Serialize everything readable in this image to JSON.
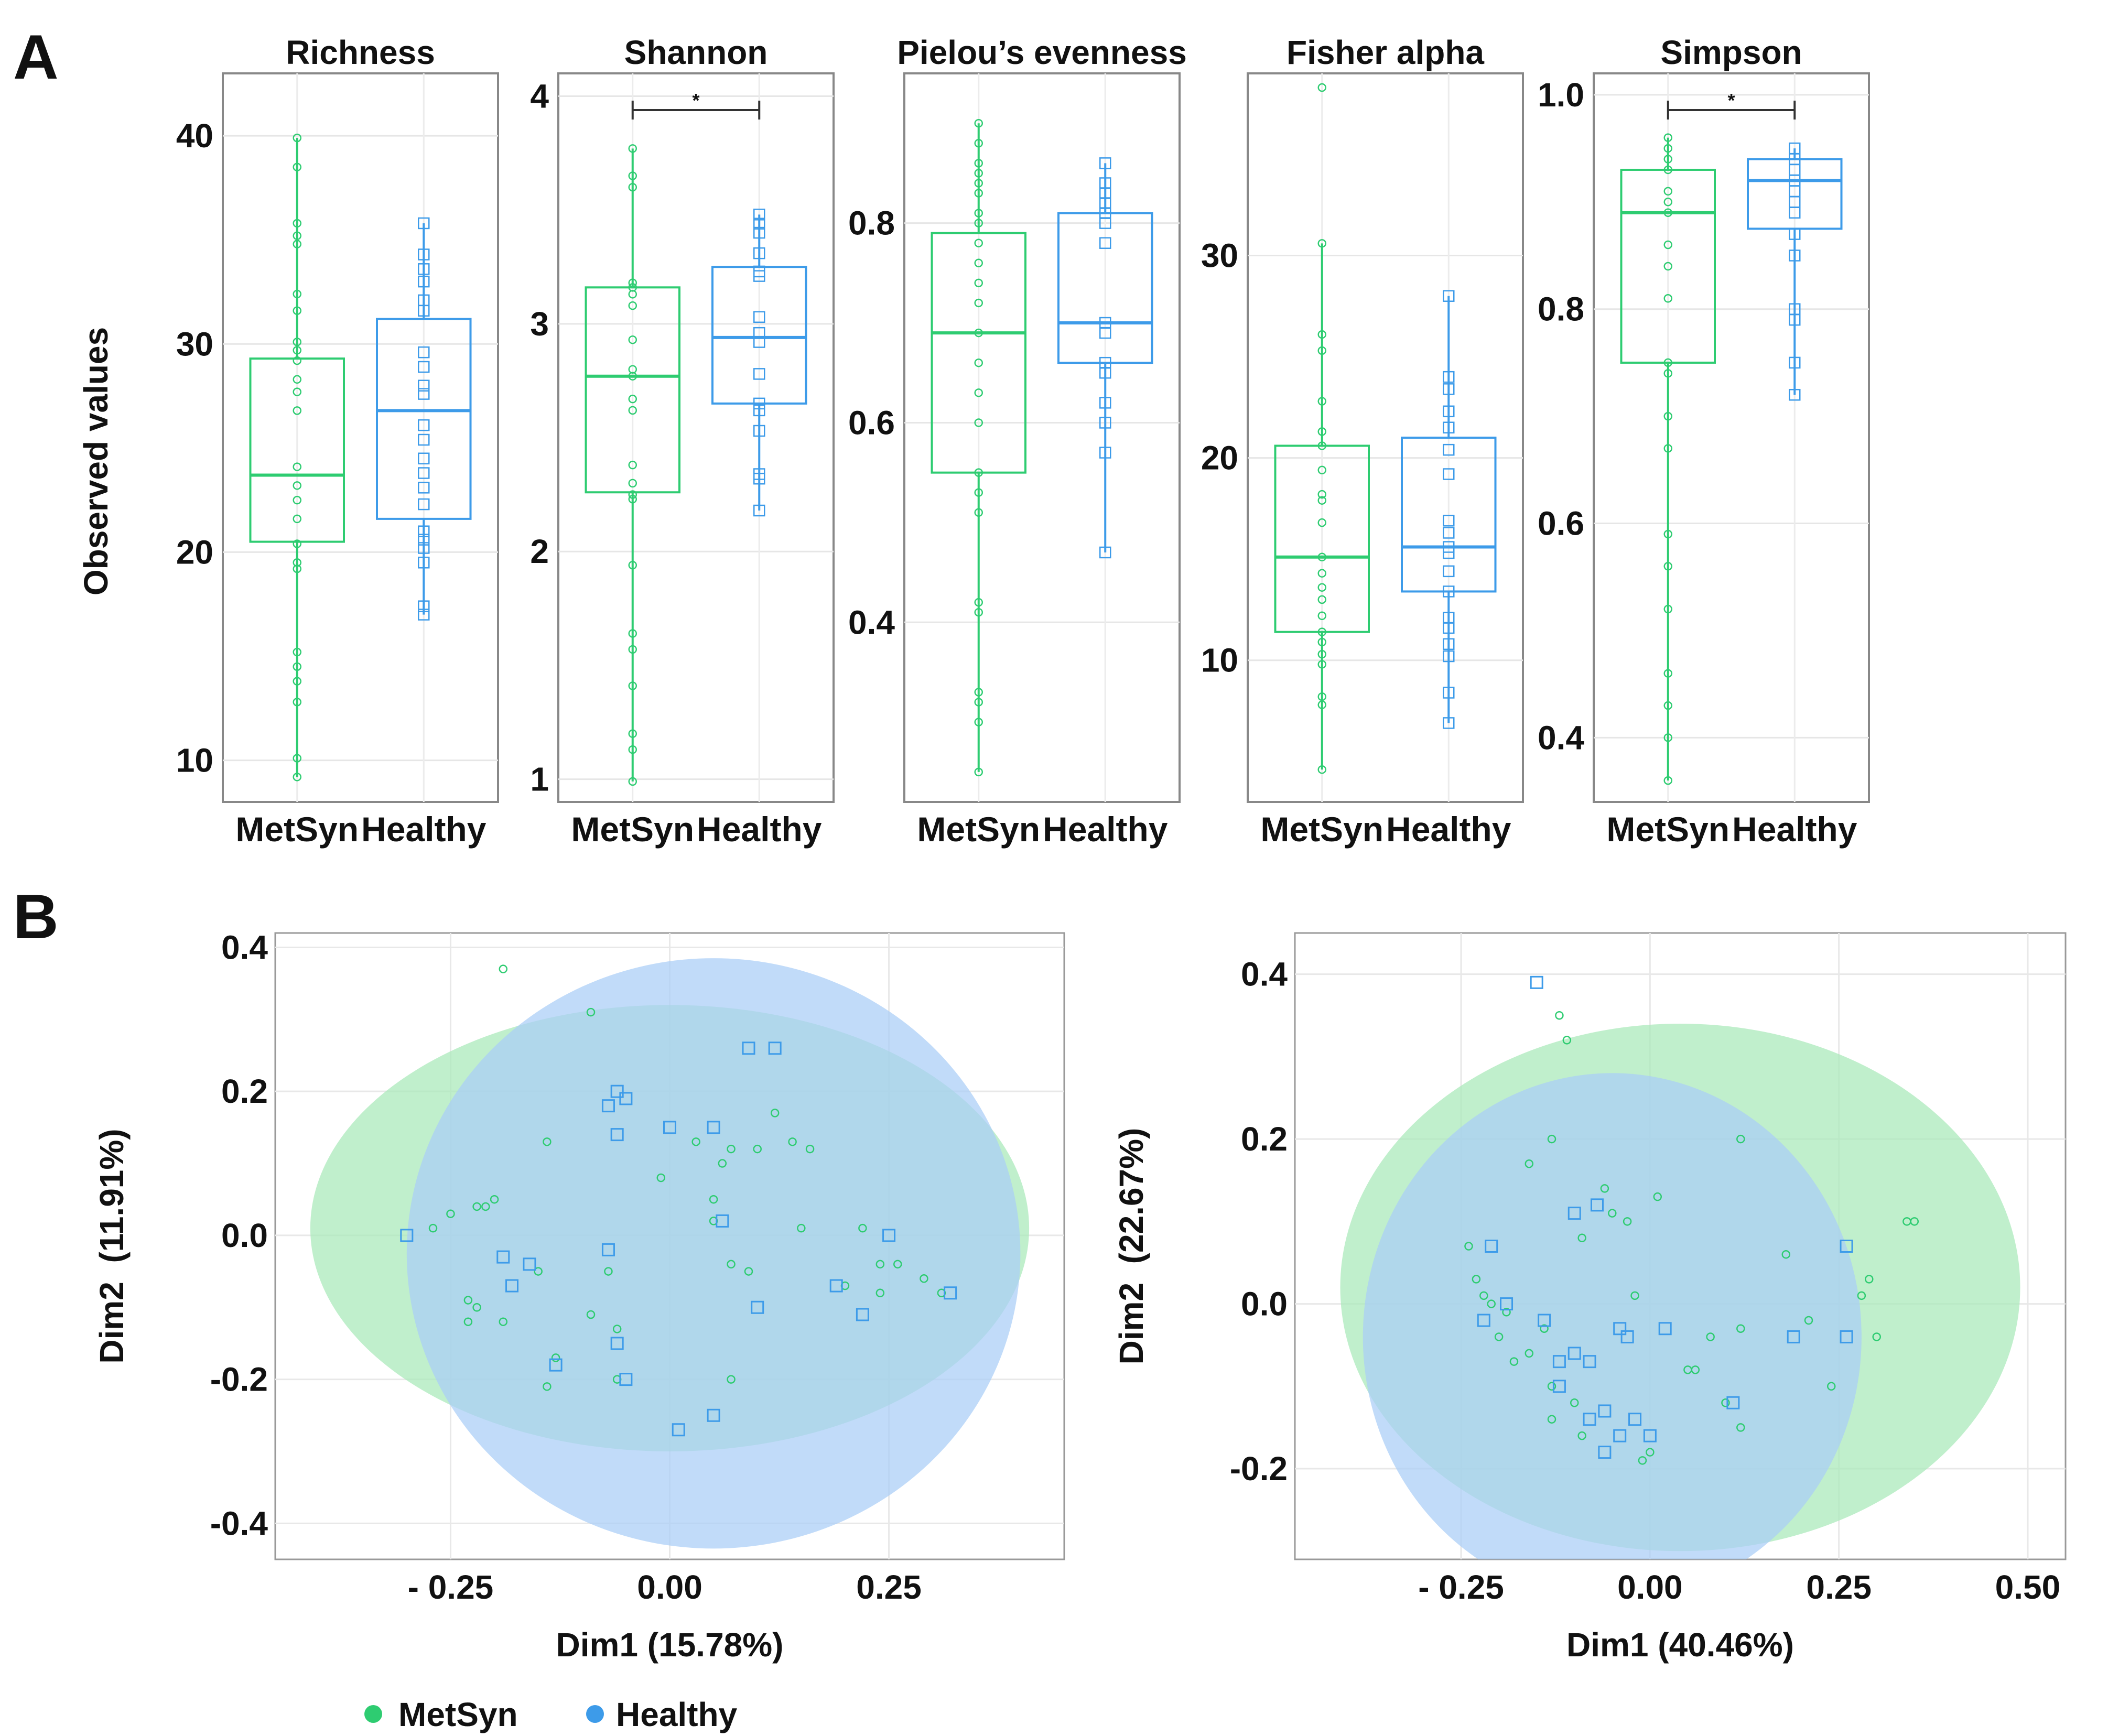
{
  "figure": {
    "panel_a_tag": "A",
    "panel_b_tag": "B",
    "ylabel_a": "Observed values",
    "legend": [
      {
        "name": "MetSyn",
        "color": "#2ecc71"
      },
      {
        "name": "Healthy",
        "color": "#3d9be9"
      }
    ]
  },
  "colors": {
    "metsyn": "#2ecc71",
    "healthy": "#3d9be9",
    "metsyn_fill": "#a7e9b9",
    "healthy_fill": "#a9cdf6",
    "overlap": "#8fd3d7"
  },
  "chart_data": [
    {
      "type": "box",
      "title": "Richness",
      "categories": [
        "MetSyn",
        "Healthy"
      ],
      "ylim": [
        8,
        43
      ],
      "yticks": [
        "10",
        "20",
        "30",
        "40"
      ],
      "ytick_values": [
        10,
        20,
        30,
        40
      ],
      "significance": null,
      "series": [
        {
          "name": "MetSyn",
          "q1": 20.5,
          "median": 23.7,
          "q3": 29.3,
          "whisker_low": 9.2,
          "whisker_high": 39.9,
          "points": [
            9.2,
            10.1,
            12.8,
            13.8,
            14.5,
            15.2,
            19.2,
            19.5,
            20.4,
            21.6,
            22.5,
            23.2,
            24.1,
            26.8,
            27.7,
            28.3,
            29.2,
            29.7,
            30.1,
            31.6,
            32.4,
            34.8,
            35.2,
            35.8,
            38.5,
            39.9
          ]
        },
        {
          "name": "Healthy",
          "q1": 21.6,
          "median": 26.8,
          "q3": 31.2,
          "whisker_low": 17.0,
          "whisker_high": 35.8,
          "points": [
            17.0,
            17.4,
            19.5,
            20.2,
            20.6,
            21.0,
            22.3,
            23.1,
            23.8,
            24.5,
            25.4,
            26.1,
            27.6,
            28.0,
            28.9,
            29.6,
            31.6,
            32.1,
            33.0,
            33.6,
            34.3,
            35.8
          ]
        }
      ]
    },
    {
      "type": "box",
      "title": "Shannon",
      "categories": [
        "MetSyn",
        "Healthy"
      ],
      "ylim": [
        0.9,
        4.1
      ],
      "yticks": [
        "1",
        "2",
        "3",
        "4"
      ],
      "ytick_values": [
        1,
        2,
        3,
        4
      ],
      "significance": "*",
      "series": [
        {
          "name": "MetSyn",
          "q1": 2.26,
          "median": 2.77,
          "q3": 3.16,
          "whisker_low": 0.99,
          "whisker_high": 3.77,
          "points": [
            0.99,
            1.13,
            1.2,
            1.41,
            1.57,
            1.64,
            1.94,
            2.23,
            2.25,
            2.3,
            2.38,
            2.62,
            2.67,
            2.77,
            2.8,
            2.93,
            3.08,
            3.13,
            3.16,
            3.18,
            3.6,
            3.65,
            3.77
          ]
        },
        {
          "name": "Healthy",
          "q1": 2.65,
          "median": 2.94,
          "q3": 3.25,
          "whisker_low": 2.18,
          "whisker_high": 3.48,
          "points": [
            2.18,
            2.32,
            2.34,
            2.53,
            2.62,
            2.65,
            2.78,
            2.92,
            2.96,
            3.03,
            3.21,
            3.23,
            3.31,
            3.4,
            3.44,
            3.48
          ]
        }
      ]
    },
    {
      "type": "box",
      "title": "Pielou’s evenness",
      "categories": [
        "MetSyn",
        "Healthy"
      ],
      "ylim": [
        0.22,
        0.95
      ],
      "yticks": [
        "0.4",
        "0.6",
        "0.8"
      ],
      "ytick_values": [
        0.4,
        0.6,
        0.8
      ],
      "significance": null,
      "series": [
        {
          "name": "MetSyn",
          "q1": 0.55,
          "median": 0.69,
          "q3": 0.79,
          "whisker_low": 0.25,
          "whisker_high": 0.9,
          "points": [
            0.25,
            0.3,
            0.32,
            0.33,
            0.41,
            0.42,
            0.51,
            0.53,
            0.55,
            0.6,
            0.63,
            0.66,
            0.69,
            0.72,
            0.74,
            0.76,
            0.78,
            0.8,
            0.81,
            0.83,
            0.84,
            0.85,
            0.86,
            0.88,
            0.9
          ]
        },
        {
          "name": "Healthy",
          "q1": 0.66,
          "median": 0.7,
          "q3": 0.81,
          "whisker_low": 0.47,
          "whisker_high": 0.86,
          "points": [
            0.47,
            0.57,
            0.6,
            0.62,
            0.65,
            0.66,
            0.69,
            0.7,
            0.78,
            0.8,
            0.81,
            0.82,
            0.83,
            0.84,
            0.86
          ]
        }
      ]
    },
    {
      "type": "box",
      "title": "Fisher alpha",
      "categories": [
        "MetSyn",
        "Healthy"
      ],
      "ylim": [
        3,
        39
      ],
      "yticks": [
        "10",
        "20",
        "30"
      ],
      "ytick_values": [
        10,
        20,
        30
      ],
      "significance": null,
      "series": [
        {
          "name": "MetSyn",
          "q1": 11.4,
          "median": 15.1,
          "q3": 20.6,
          "whisker_low": 4.6,
          "whisker_high": 30.6,
          "points": [
            4.6,
            7.8,
            8.2,
            9.8,
            10.3,
            10.9,
            11.4,
            12.2,
            13.0,
            13.6,
            14.3,
            15.1,
            16.8,
            17.9,
            18.2,
            19.4,
            20.6,
            21.3,
            22.8,
            25.3,
            26.1,
            30.6,
            38.3
          ]
        },
        {
          "name": "Healthy",
          "q1": 13.4,
          "median": 15.6,
          "q3": 21.0,
          "whisker_low": 6.9,
          "whisker_high": 28.0,
          "points": [
            6.9,
            8.4,
            10.2,
            10.8,
            11.6,
            12.1,
            13.4,
            14.4,
            15.3,
            15.6,
            16.3,
            16.9,
            19.2,
            20.4,
            21.5,
            22.3,
            23.4,
            24.0,
            28.0
          ]
        }
      ]
    },
    {
      "type": "box",
      "title": "Simpson",
      "categories": [
        "MetSyn",
        "Healthy"
      ],
      "ylim": [
        0.34,
        1.02
      ],
      "yticks": [
        "0.4",
        "0.6",
        "0.8",
        "1.0"
      ],
      "ytick_values": [
        0.4,
        0.6,
        0.8,
        1.0
      ],
      "significance": "*",
      "series": [
        {
          "name": "MetSyn",
          "q1": 0.75,
          "median": 0.89,
          "q3": 0.93,
          "whisker_low": 0.36,
          "whisker_high": 0.96,
          "points": [
            0.36,
            0.4,
            0.43,
            0.46,
            0.52,
            0.56,
            0.59,
            0.67,
            0.7,
            0.74,
            0.75,
            0.81,
            0.84,
            0.86,
            0.89,
            0.9,
            0.91,
            0.93,
            0.94,
            0.95,
            0.96
          ]
        },
        {
          "name": "Healthy",
          "q1": 0.875,
          "median": 0.92,
          "q3": 0.94,
          "whisker_low": 0.72,
          "whisker_high": 0.95,
          "points": [
            0.72,
            0.75,
            0.79,
            0.8,
            0.85,
            0.87,
            0.89,
            0.9,
            0.91,
            0.92,
            0.93,
            0.94,
            0.95
          ]
        }
      ]
    },
    {
      "type": "scatter",
      "xlabel": "Dim1 (15.78%)",
      "ylabel": "Dim2  (11.91%)",
      "xlim": [
        -0.45,
        0.45
      ],
      "ylim": [
        -0.45,
        0.42
      ],
      "xticks": [
        "- 0.25",
        "0.00",
        "0.25"
      ],
      "xtick_values": [
        -0.25,
        0,
        0.25
      ],
      "yticks": [
        "0.4",
        "0.2",
        "0.0",
        "-0.2",
        "-0.4"
      ],
      "ytick_values": [
        0.4,
        0.2,
        0.0,
        -0.2,
        -0.4
      ],
      "ellipses": [
        {
          "series": "MetSyn",
          "cx": 0.0,
          "cy": 0.01,
          "rx": 0.41,
          "ry": 0.31
        },
        {
          "series": "Healthy",
          "cx": 0.05,
          "cy": -0.025,
          "rx": 0.35,
          "ry": 0.41
        }
      ],
      "series": [
        {
          "name": "MetSyn",
          "marker": "circle",
          "points": [
            [
              -0.19,
              0.37
            ],
            [
              -0.09,
              0.31
            ],
            [
              -0.14,
              0.13
            ],
            [
              -0.2,
              0.05
            ],
            [
              -0.21,
              0.04
            ],
            [
              -0.22,
              0.04
            ],
            [
              -0.25,
              0.03
            ],
            [
              -0.27,
              0.01
            ],
            [
              -0.23,
              -0.09
            ],
            [
              -0.23,
              -0.12
            ],
            [
              -0.22,
              -0.1
            ],
            [
              -0.19,
              -0.12
            ],
            [
              -0.15,
              -0.05
            ],
            [
              -0.13,
              -0.17
            ],
            [
              -0.14,
              -0.21
            ],
            [
              -0.09,
              -0.11
            ],
            [
              -0.06,
              -0.13
            ],
            [
              -0.06,
              -0.2
            ],
            [
              -0.07,
              -0.05
            ],
            [
              -0.01,
              0.08
            ],
            [
              0.03,
              0.13
            ],
            [
              0.06,
              0.1
            ],
            [
              0.05,
              0.05
            ],
            [
              0.07,
              0.12
            ],
            [
              0.1,
              0.12
            ],
            [
              0.12,
              0.17
            ],
            [
              0.14,
              0.13
            ],
            [
              0.16,
              0.12
            ],
            [
              0.15,
              0.01
            ],
            [
              0.07,
              -0.04
            ],
            [
              0.09,
              -0.05
            ],
            [
              0.07,
              -0.2
            ],
            [
              0.22,
              0.01
            ],
            [
              0.24,
              -0.04
            ],
            [
              0.26,
              -0.04
            ],
            [
              0.29,
              -0.06
            ],
            [
              0.31,
              -0.08
            ],
            [
              0.2,
              -0.07
            ],
            [
              0.24,
              -0.08
            ],
            [
              0.05,
              0.02
            ]
          ]
        },
        {
          "name": "Healthy",
          "marker": "square",
          "points": [
            [
              -0.3,
              0.0
            ],
            [
              -0.19,
              -0.03
            ],
            [
              -0.18,
              -0.07
            ],
            [
              -0.16,
              -0.04
            ],
            [
              -0.13,
              -0.18
            ],
            [
              -0.07,
              -0.02
            ],
            [
              -0.06,
              -0.15
            ],
            [
              -0.05,
              -0.2
            ],
            [
              -0.06,
              0.2
            ],
            [
              -0.07,
              0.18
            ],
            [
              -0.05,
              0.19
            ],
            [
              -0.06,
              0.14
            ],
            [
              0.0,
              0.15
            ],
            [
              0.05,
              0.15
            ],
            [
              0.09,
              0.26
            ],
            [
              0.12,
              0.26
            ],
            [
              0.06,
              0.02
            ],
            [
              0.1,
              -0.1
            ],
            [
              0.19,
              -0.07
            ],
            [
              0.22,
              -0.11
            ],
            [
              0.25,
              0.0
            ],
            [
              0.32,
              -0.08
            ],
            [
              0.01,
              -0.27
            ],
            [
              0.05,
              -0.25
            ]
          ]
        }
      ]
    },
    {
      "type": "scatter",
      "xlabel": "Dim1 (40.46%)",
      "ylabel": "Dim2  (22.67%)",
      "xlim": [
        -0.47,
        0.55
      ],
      "ylim": [
        -0.31,
        0.45
      ],
      "xticks": [
        "- 0.25",
        "0.00",
        "0.25",
        "0.50"
      ],
      "xtick_values": [
        -0.25,
        0,
        0.25,
        0.5
      ],
      "yticks": [
        "0.4",
        "0.2",
        "0.0",
        "-0.2"
      ],
      "ytick_values": [
        0.4,
        0.2,
        0.0,
        -0.2
      ],
      "ellipses": [
        {
          "series": "MetSyn",
          "cx": 0.04,
          "cy": 0.02,
          "rx": 0.45,
          "ry": 0.32
        },
        {
          "series": "Healthy",
          "cx": -0.05,
          "cy": -0.04,
          "rx": 0.33,
          "ry": 0.32
        }
      ],
      "series": [
        {
          "name": "MetSyn",
          "marker": "circle",
          "points": [
            [
              -0.12,
              0.35
            ],
            [
              -0.11,
              0.32
            ],
            [
              -0.13,
              0.2
            ],
            [
              -0.16,
              0.17
            ],
            [
              -0.06,
              0.14
            ],
            [
              -0.05,
              0.11
            ],
            [
              -0.09,
              0.08
            ],
            [
              0.01,
              0.13
            ],
            [
              -0.03,
              0.1
            ],
            [
              0.12,
              0.2
            ],
            [
              -0.24,
              0.07
            ],
            [
              -0.23,
              0.03
            ],
            [
              -0.21,
              0.0
            ],
            [
              -0.19,
              -0.01
            ],
            [
              -0.2,
              -0.04
            ],
            [
              -0.16,
              -0.06
            ],
            [
              -0.18,
              -0.07
            ],
            [
              -0.13,
              -0.1
            ],
            [
              -0.1,
              -0.12
            ],
            [
              -0.13,
              -0.14
            ],
            [
              -0.09,
              -0.16
            ],
            [
              -0.02,
              0.01
            ],
            [
              0.05,
              -0.08
            ],
            [
              0.06,
              -0.08
            ],
            [
              0.08,
              -0.04
            ],
            [
              0.12,
              -0.03
            ],
            [
              0.1,
              -0.12
            ],
            [
              0.12,
              -0.15
            ],
            [
              0.18,
              0.06
            ],
            [
              0.21,
              -0.02
            ],
            [
              0.24,
              -0.1
            ],
            [
              0.28,
              0.01
            ],
            [
              0.29,
              0.03
            ],
            [
              0.3,
              -0.04
            ],
            [
              0.34,
              0.1
            ],
            [
              0.35,
              0.1
            ],
            [
              -0.01,
              -0.19
            ],
            [
              0.0,
              -0.18
            ],
            [
              -0.14,
              -0.03
            ],
            [
              -0.22,
              0.01
            ]
          ]
        },
        {
          "name": "Healthy",
          "marker": "square",
          "points": [
            [
              -0.15,
              0.39
            ],
            [
              -0.21,
              0.07
            ],
            [
              -0.1,
              0.11
            ],
            [
              -0.07,
              0.12
            ],
            [
              -0.22,
              -0.02
            ],
            [
              -0.19,
              0.0
            ],
            [
              -0.14,
              -0.02
            ],
            [
              -0.12,
              -0.07
            ],
            [
              -0.1,
              -0.06
            ],
            [
              -0.08,
              -0.07
            ],
            [
              -0.04,
              -0.03
            ],
            [
              -0.03,
              -0.04
            ],
            [
              -0.06,
              -0.13
            ],
            [
              -0.08,
              -0.14
            ],
            [
              -0.04,
              -0.16
            ],
            [
              -0.02,
              -0.14
            ],
            [
              0.0,
              -0.16
            ],
            [
              0.02,
              -0.03
            ],
            [
              0.11,
              -0.12
            ],
            [
              0.19,
              -0.04
            ],
            [
              0.26,
              -0.04
            ],
            [
              0.26,
              0.07
            ],
            [
              -0.06,
              -0.18
            ],
            [
              -0.12,
              -0.1
            ]
          ]
        }
      ]
    }
  ]
}
